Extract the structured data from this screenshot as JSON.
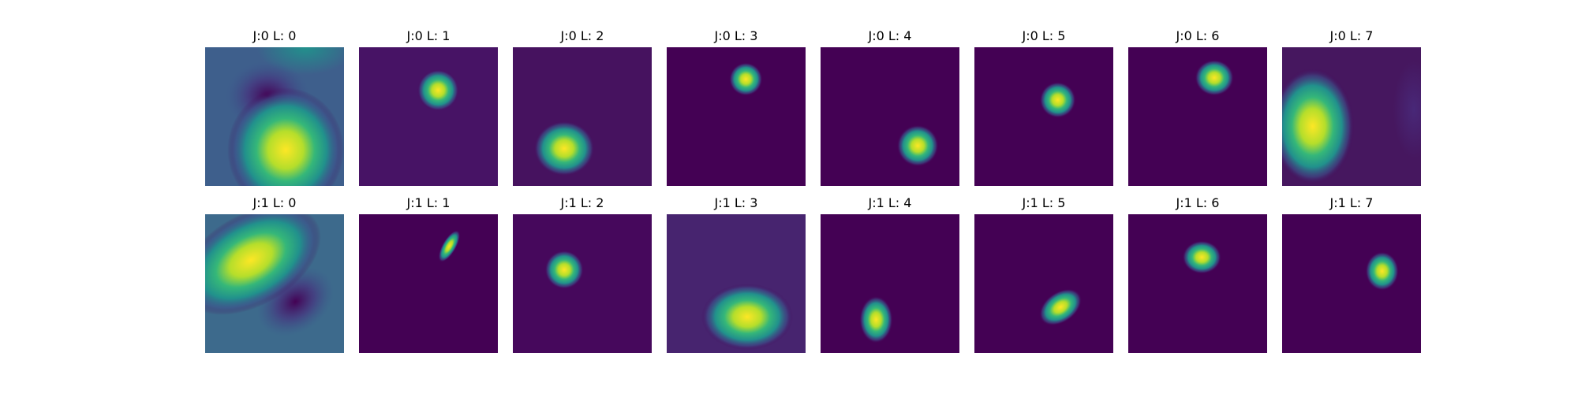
{
  "panels": [
    "J:0 L: 0",
    "J:0 L: 1",
    "J:0 L: 2",
    "J:0 L: 3",
    "J:0 L: 4",
    "J:0 L: 5",
    "J:0 L: 6",
    "J:0 L: 7",
    "J:1 L: 0",
    "J:1 L: 1",
    "J:1 L: 2",
    "J:1 L: 3",
    "J:1 L: 4",
    "J:1 L: 5",
    "J:1 L: 6",
    "J:1 L: 7"
  ]
}
